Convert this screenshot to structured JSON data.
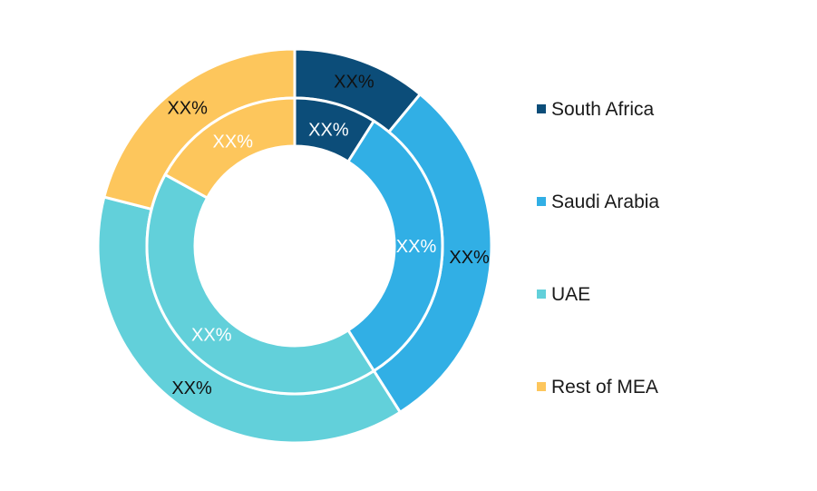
{
  "chart_data": {
    "type": "pie",
    "style": "nested-donut",
    "rings": [
      {
        "name": "",
        "values": [
          11,
          30,
          38,
          21
        ],
        "labels": [
          "XX%",
          "XX%",
          "XX%",
          "XX%"
        ],
        "label_color": "#111111"
      },
      {
        "name": "",
        "values": [
          9,
          32,
          42,
          17
        ],
        "labels": [
          "XX%",
          "XX%",
          "XX%",
          "XX%"
        ],
        "label_color": "#ffffff"
      }
    ],
    "categories": [
      "South Africa",
      "Saudi Arabia",
      "UAE",
      "Rest of MEA"
    ],
    "colors": [
      "#0c4d79",
      "#31afe5",
      "#62d0da",
      "#fdc65c"
    ],
    "legend_position": "right"
  }
}
